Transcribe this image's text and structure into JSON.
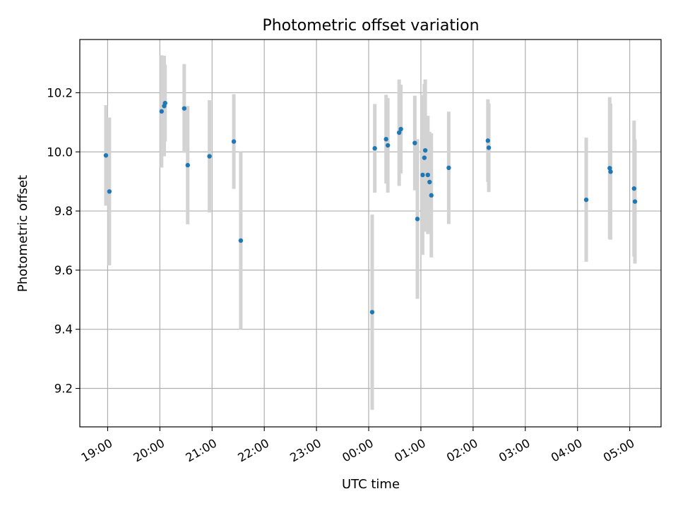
{
  "chart_data": {
    "type": "scatter",
    "title": "Photometric offset variation",
    "xlabel": "UTC time",
    "ylabel": "Photometric offset",
    "x_axis": {
      "kind": "time",
      "start": "18:28",
      "end": "05:36",
      "ticks": [
        "19:00",
        "20:00",
        "21:00",
        "22:00",
        "23:00",
        "00:00",
        "01:00",
        "02:00",
        "03:00",
        "04:00",
        "05:00"
      ],
      "tick_rotation_deg": 30
    },
    "y_axis": {
      "ylim": [
        9.07,
        10.38
      ],
      "ticks": [
        "9.2",
        "9.4",
        "9.6",
        "9.8",
        "10.0",
        "10.2"
      ]
    },
    "grid": true,
    "colors": {
      "points": "#1f77b4",
      "error_bars": "#d3d3d3",
      "grid": "#b0b0b0"
    },
    "points": [
      {
        "time": "18:58",
        "y": 9.988,
        "err": 0.17
      },
      {
        "time": "19:02",
        "y": 9.866,
        "err": 0.25
      },
      {
        "time": "20:02",
        "y": 10.137,
        "err": 0.19
      },
      {
        "time": "20:05",
        "y": 10.155,
        "err": 0.17
      },
      {
        "time": "20:06",
        "y": 10.165,
        "err": 0.13
      },
      {
        "time": "20:28",
        "y": 10.147,
        "err": 0.15
      },
      {
        "time": "20:32",
        "y": 9.955,
        "err": 0.2
      },
      {
        "time": "20:57",
        "y": 9.985,
        "err": 0.19
      },
      {
        "time": "21:25",
        "y": 10.035,
        "err": 0.16
      },
      {
        "time": "21:33",
        "y": 9.7,
        "err": 0.3
      },
      {
        "time": "00:04",
        "y": 9.458,
        "err": 0.33
      },
      {
        "time": "00:07",
        "y": 10.012,
        "err": 0.15
      },
      {
        "time": "00:20",
        "y": 10.043,
        "err": 0.15
      },
      {
        "time": "00:22",
        "y": 10.022,
        "err": 0.16
      },
      {
        "time": "00:35",
        "y": 10.065,
        "err": 0.18
      },
      {
        "time": "00:37",
        "y": 10.077,
        "err": 0.15
      },
      {
        "time": "00:53",
        "y": 10.03,
        "err": 0.16
      },
      {
        "time": "00:56",
        "y": 9.773,
        "err": 0.27
      },
      {
        "time": "01:02",
        "y": 9.922,
        "err": 0.27
      },
      {
        "time": "01:04",
        "y": 9.98,
        "err": 0.25
      },
      {
        "time": "01:05",
        "y": 10.005,
        "err": 0.24
      },
      {
        "time": "01:08",
        "y": 9.922,
        "err": 0.2
      },
      {
        "time": "01:10",
        "y": 9.898,
        "err": 0.17
      },
      {
        "time": "01:12",
        "y": 9.853,
        "err": 0.21
      },
      {
        "time": "01:32",
        "y": 9.946,
        "err": 0.19
      },
      {
        "time": "02:17",
        "y": 10.038,
        "err": 0.14
      },
      {
        "time": "02:18",
        "y": 10.014,
        "err": 0.15
      },
      {
        "time": "04:10",
        "y": 9.838,
        "err": 0.21
      },
      {
        "time": "04:37",
        "y": 9.945,
        "err": 0.24
      },
      {
        "time": "04:38",
        "y": 9.933,
        "err": 0.23
      },
      {
        "time": "05:05",
        "y": 9.876,
        "err": 0.23
      },
      {
        "time": "05:06",
        "y": 9.832,
        "err": 0.21
      }
    ]
  }
}
